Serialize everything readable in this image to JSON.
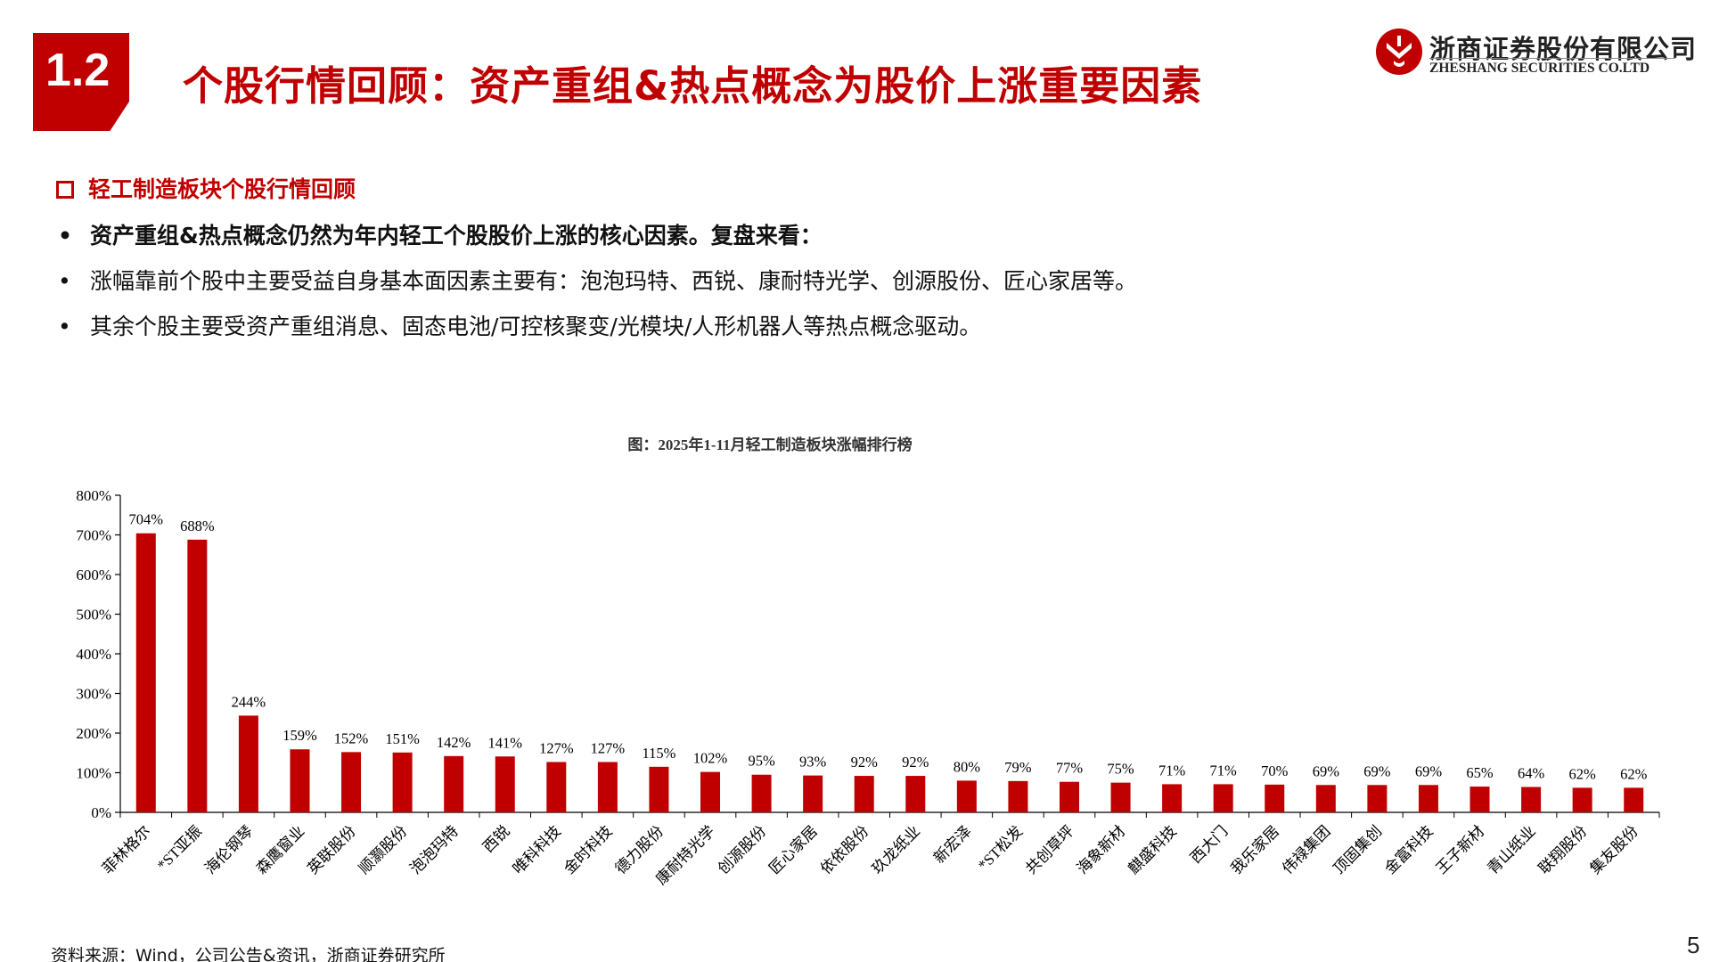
{
  "header": {
    "section_number": "1.2",
    "title": "个股行情回顾：资产重组&热点概念为股价上涨重要因素",
    "logo_cn": "浙商证券股份有限公司",
    "logo_en": "ZHESHANG SECURITIES CO.LTD",
    "accent_color": "#c00000"
  },
  "content": {
    "sub_heading": "轻工制造板块个股行情回顾",
    "bullets": [
      "资产重组&热点概念仍然为年内轻工个股股价上涨的核心因素。复盘来看：",
      "涨幅靠前个股中主要受益自身基本面因素主要有：泡泡玛特、西锐、康耐特光学、创源股份、匠心家居等。",
      "其余个股主要受资产重组消息、固态电池/可控核聚变/光模块/人形机器人等热点概念驱动。"
    ]
  },
  "chart_data": {
    "type": "bar",
    "title": "图：2025年1-11月轻工制造板块涨幅排行榜",
    "xlabel": "",
    "ylabel": "",
    "ylim": [
      0,
      800
    ],
    "yticks": [
      0,
      100,
      200,
      300,
      400,
      500,
      600,
      700,
      800
    ],
    "ytick_labels": [
      "0%",
      "100%",
      "200%",
      "300%",
      "400%",
      "500%",
      "600%",
      "700%",
      "800%"
    ],
    "bar_color": "#c00000",
    "grid": false,
    "categories": [
      "菲林格尔",
      "*ST亚振",
      "海伦钢琴",
      "森鹰窗业",
      "英联股份",
      "顺灏股份",
      "泡泡玛特",
      "西锐",
      "唯科科技",
      "金时科技",
      "德力股份",
      "康耐特光学",
      "创源股份",
      "匠心家居",
      "依依股份",
      "玖龙纸业",
      "新宏泽",
      "*ST松发",
      "共创草坪",
      "海象新材",
      "麒盛科技",
      "西大门",
      "我乐家居",
      "伟禄集团",
      "顶固集创",
      "金富科技",
      "王子新材",
      "青山纸业",
      "联翔股份",
      "集友股份"
    ],
    "values": [
      704,
      688,
      244,
      159,
      152,
      151,
      142,
      141,
      127,
      127,
      115,
      102,
      95,
      93,
      92,
      92,
      80,
      79,
      77,
      75,
      71,
      71,
      70,
      69,
      69,
      69,
      65,
      64,
      62,
      62
    ],
    "value_labels": [
      "704%",
      "688%",
      "244%",
      "159%",
      "152%",
      "151%",
      "142%",
      "141%",
      "127%",
      "127%",
      "115%",
      "102%",
      "95%",
      "93%",
      "92%",
      "92%",
      "80%",
      "79%",
      "77%",
      "75%",
      "71%",
      "71%",
      "70%",
      "69%",
      "69%",
      "69%",
      "65%",
      "64%",
      "62%",
      "62%"
    ]
  },
  "footer": {
    "source": "资料来源：Wind，公司公告&资讯，浙商证券研究所",
    "page_number": "5"
  }
}
